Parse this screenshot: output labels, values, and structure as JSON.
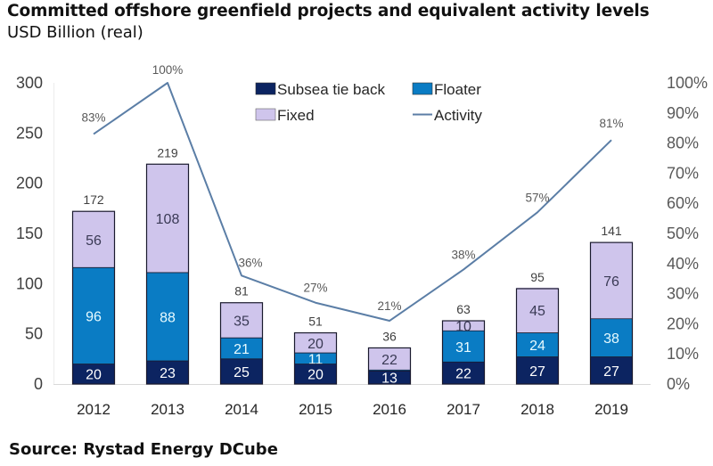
{
  "header": {
    "title": "Committed offshore greenfield projects and equivalent activity levels",
    "subtitle": "USD Billion (real)"
  },
  "footer": {
    "source": "Source: Rystad Energy DCube"
  },
  "colors": {
    "subsea": "#0c2461",
    "floater": "#0a7cc4",
    "fixed": "#cfc5ec",
    "activity": "#5b7ea6",
    "seg_label_light": "#ffffff",
    "seg_label_dark": "#3a3a55"
  },
  "chart_data": {
    "type": "bar",
    "stacked": true,
    "title": "Committed offshore greenfield projects and equivalent activity levels",
    "subtitle": "USD Billion (real)",
    "xlabel": "",
    "ylabel": "USD Billion (real)",
    "y2label": "Activity",
    "categories": [
      "2012",
      "2013",
      "2014",
      "2015",
      "2016",
      "2017",
      "2018",
      "2019"
    ],
    "series": [
      {
        "name": "Subsea tie back",
        "type": "bar",
        "values": [
          20,
          23,
          25,
          20,
          13,
          22,
          27,
          27
        ],
        "labels": [
          "20",
          "23",
          "25",
          "20",
          "13",
          "22",
          "27",
          "27"
        ]
      },
      {
        "name": "Floater",
        "type": "bar",
        "values": [
          96,
          88,
          21,
          11,
          1,
          31,
          24,
          38
        ],
        "labels": [
          "96",
          "88",
          "21",
          "11",
          "",
          "31",
          "24",
          "38"
        ]
      },
      {
        "name": "Fixed",
        "type": "bar",
        "values": [
          56,
          108,
          35,
          20,
          22,
          10,
          45,
          76
        ],
        "labels": [
          "56",
          "108",
          "35",
          "20",
          "22",
          "10",
          "45",
          "76"
        ]
      },
      {
        "name": "Activity",
        "type": "line",
        "axis": "right",
        "values": [
          83,
          100,
          36,
          27,
          21,
          38,
          57,
          81
        ],
        "labels": [
          "83%",
          "100%",
          "36%",
          "27%",
          "21%",
          "38%",
          "57%",
          "81%"
        ]
      }
    ],
    "totals": [
      172,
      219,
      81,
      51,
      36,
      63,
      95,
      141
    ],
    "ylim": [
      0,
      300
    ],
    "yticks": [
      "0",
      "50",
      "100",
      "150",
      "200",
      "250",
      "300"
    ],
    "y2lim": [
      0,
      100
    ],
    "y2ticks": [
      "0%",
      "10%",
      "20%",
      "30%",
      "40%",
      "50%",
      "60%",
      "70%",
      "80%",
      "90%",
      "100%"
    ],
    "grid": false,
    "legend": {
      "position": "top-center",
      "entries": [
        "Subsea tie back",
        "Floater",
        "Fixed",
        "Activity"
      ]
    }
  }
}
